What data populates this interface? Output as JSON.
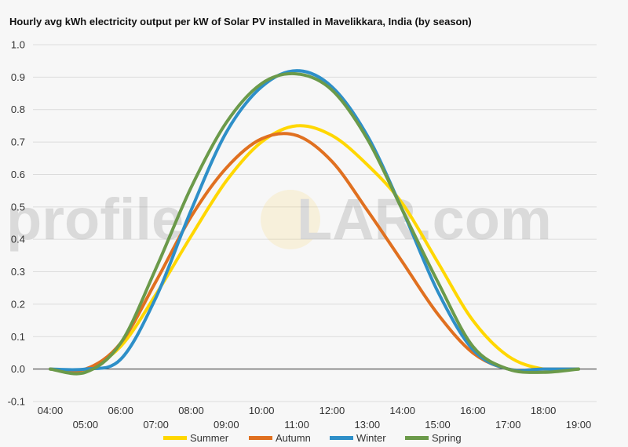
{
  "chart_data": {
    "type": "line",
    "title": "Hourly avg kWh electricity output per kW of Solar PV installed in Mavelikkara, India (by season)",
    "xlabel": "",
    "ylabel": "",
    "ylim": [
      -0.1,
      1.0
    ],
    "yticks": [
      "-0.1",
      "0.0",
      "0.1",
      "0.2",
      "0.3",
      "0.4",
      "0.5",
      "0.6",
      "0.7",
      "0.8",
      "0.9",
      "1.0"
    ],
    "xticks": [
      "04:00",
      "05:00",
      "06:00",
      "07:00",
      "08:00",
      "09:00",
      "10:00",
      "11:00",
      "12:00",
      "13:00",
      "14:00",
      "15:00",
      "16:00",
      "17:00",
      "18:00",
      "19:00"
    ],
    "x": [
      "04:00",
      "05:00",
      "06:00",
      "07:00",
      "08:00",
      "09:00",
      "10:00",
      "11:00",
      "12:00",
      "13:00",
      "14:00",
      "15:00",
      "16:00",
      "17:00",
      "18:00",
      "19:00"
    ],
    "grid": true,
    "legend_position": "bottom",
    "series": [
      {
        "name": "Summer",
        "color": "#FFD700",
        "values": [
          0.0,
          0.0,
          0.07,
          0.23,
          0.41,
          0.58,
          0.7,
          0.75,
          0.72,
          0.63,
          0.51,
          0.33,
          0.15,
          0.04,
          0.0,
          0.0
        ]
      },
      {
        "name": "Autumn",
        "color": "#E07020",
        "values": [
          0.0,
          0.0,
          0.08,
          0.27,
          0.47,
          0.62,
          0.71,
          0.72,
          0.64,
          0.49,
          0.33,
          0.17,
          0.05,
          0.0,
          0.0,
          0.0
        ]
      },
      {
        "name": "Winter",
        "color": "#2E8FC8",
        "values": [
          0.0,
          0.0,
          0.03,
          0.22,
          0.49,
          0.73,
          0.87,
          0.92,
          0.87,
          0.72,
          0.49,
          0.24,
          0.06,
          0.0,
          0.0,
          0.0
        ]
      },
      {
        "name": "Spring",
        "color": "#6B9A4A",
        "values": [
          0.0,
          -0.01,
          0.08,
          0.31,
          0.56,
          0.76,
          0.88,
          0.91,
          0.86,
          0.71,
          0.49,
          0.27,
          0.07,
          0.0,
          -0.01,
          0.0
        ]
      }
    ]
  },
  "watermark": {
    "left": "profile",
    "right": "LAR.com"
  }
}
